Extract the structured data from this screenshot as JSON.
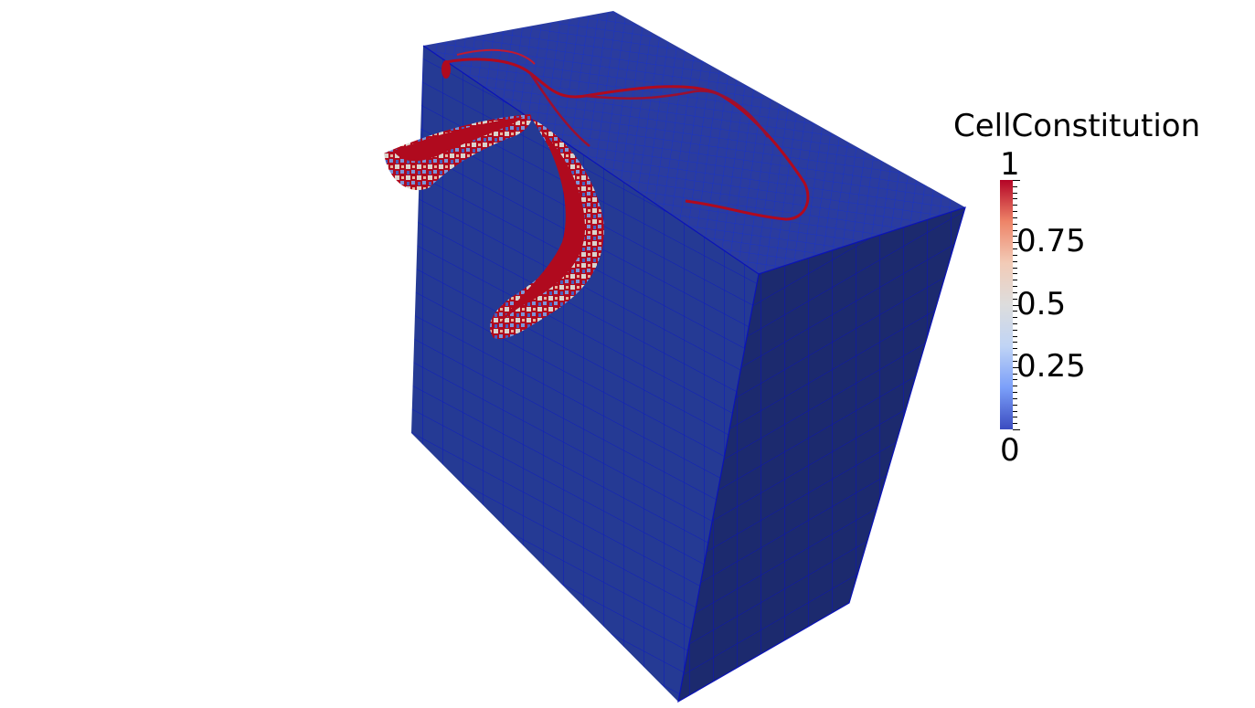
{
  "legend": {
    "title": "CellConstitution",
    "ticks": [
      {
        "value": 1,
        "label": "1"
      },
      {
        "value": 0.75,
        "label": "0.75"
      },
      {
        "value": 0.5,
        "label": "0.5"
      },
      {
        "value": 0.25,
        "label": "0.25"
      },
      {
        "value": 0,
        "label": "0"
      }
    ],
    "range": [
      0,
      1
    ],
    "colormap": [
      "#3b4cc0",
      "#7b9ff9",
      "#c0d4f5",
      "#dddddd",
      "#f2cbb7",
      "#ee8468",
      "#b40426"
    ]
  },
  "colors": {
    "top_face": "#2a3a9a",
    "left_face": "#263a93",
    "right_face": "#1c2a6e",
    "mesh_line": "#0b13b8",
    "feature_red": "#b00a1e",
    "background": "#ffffff"
  }
}
